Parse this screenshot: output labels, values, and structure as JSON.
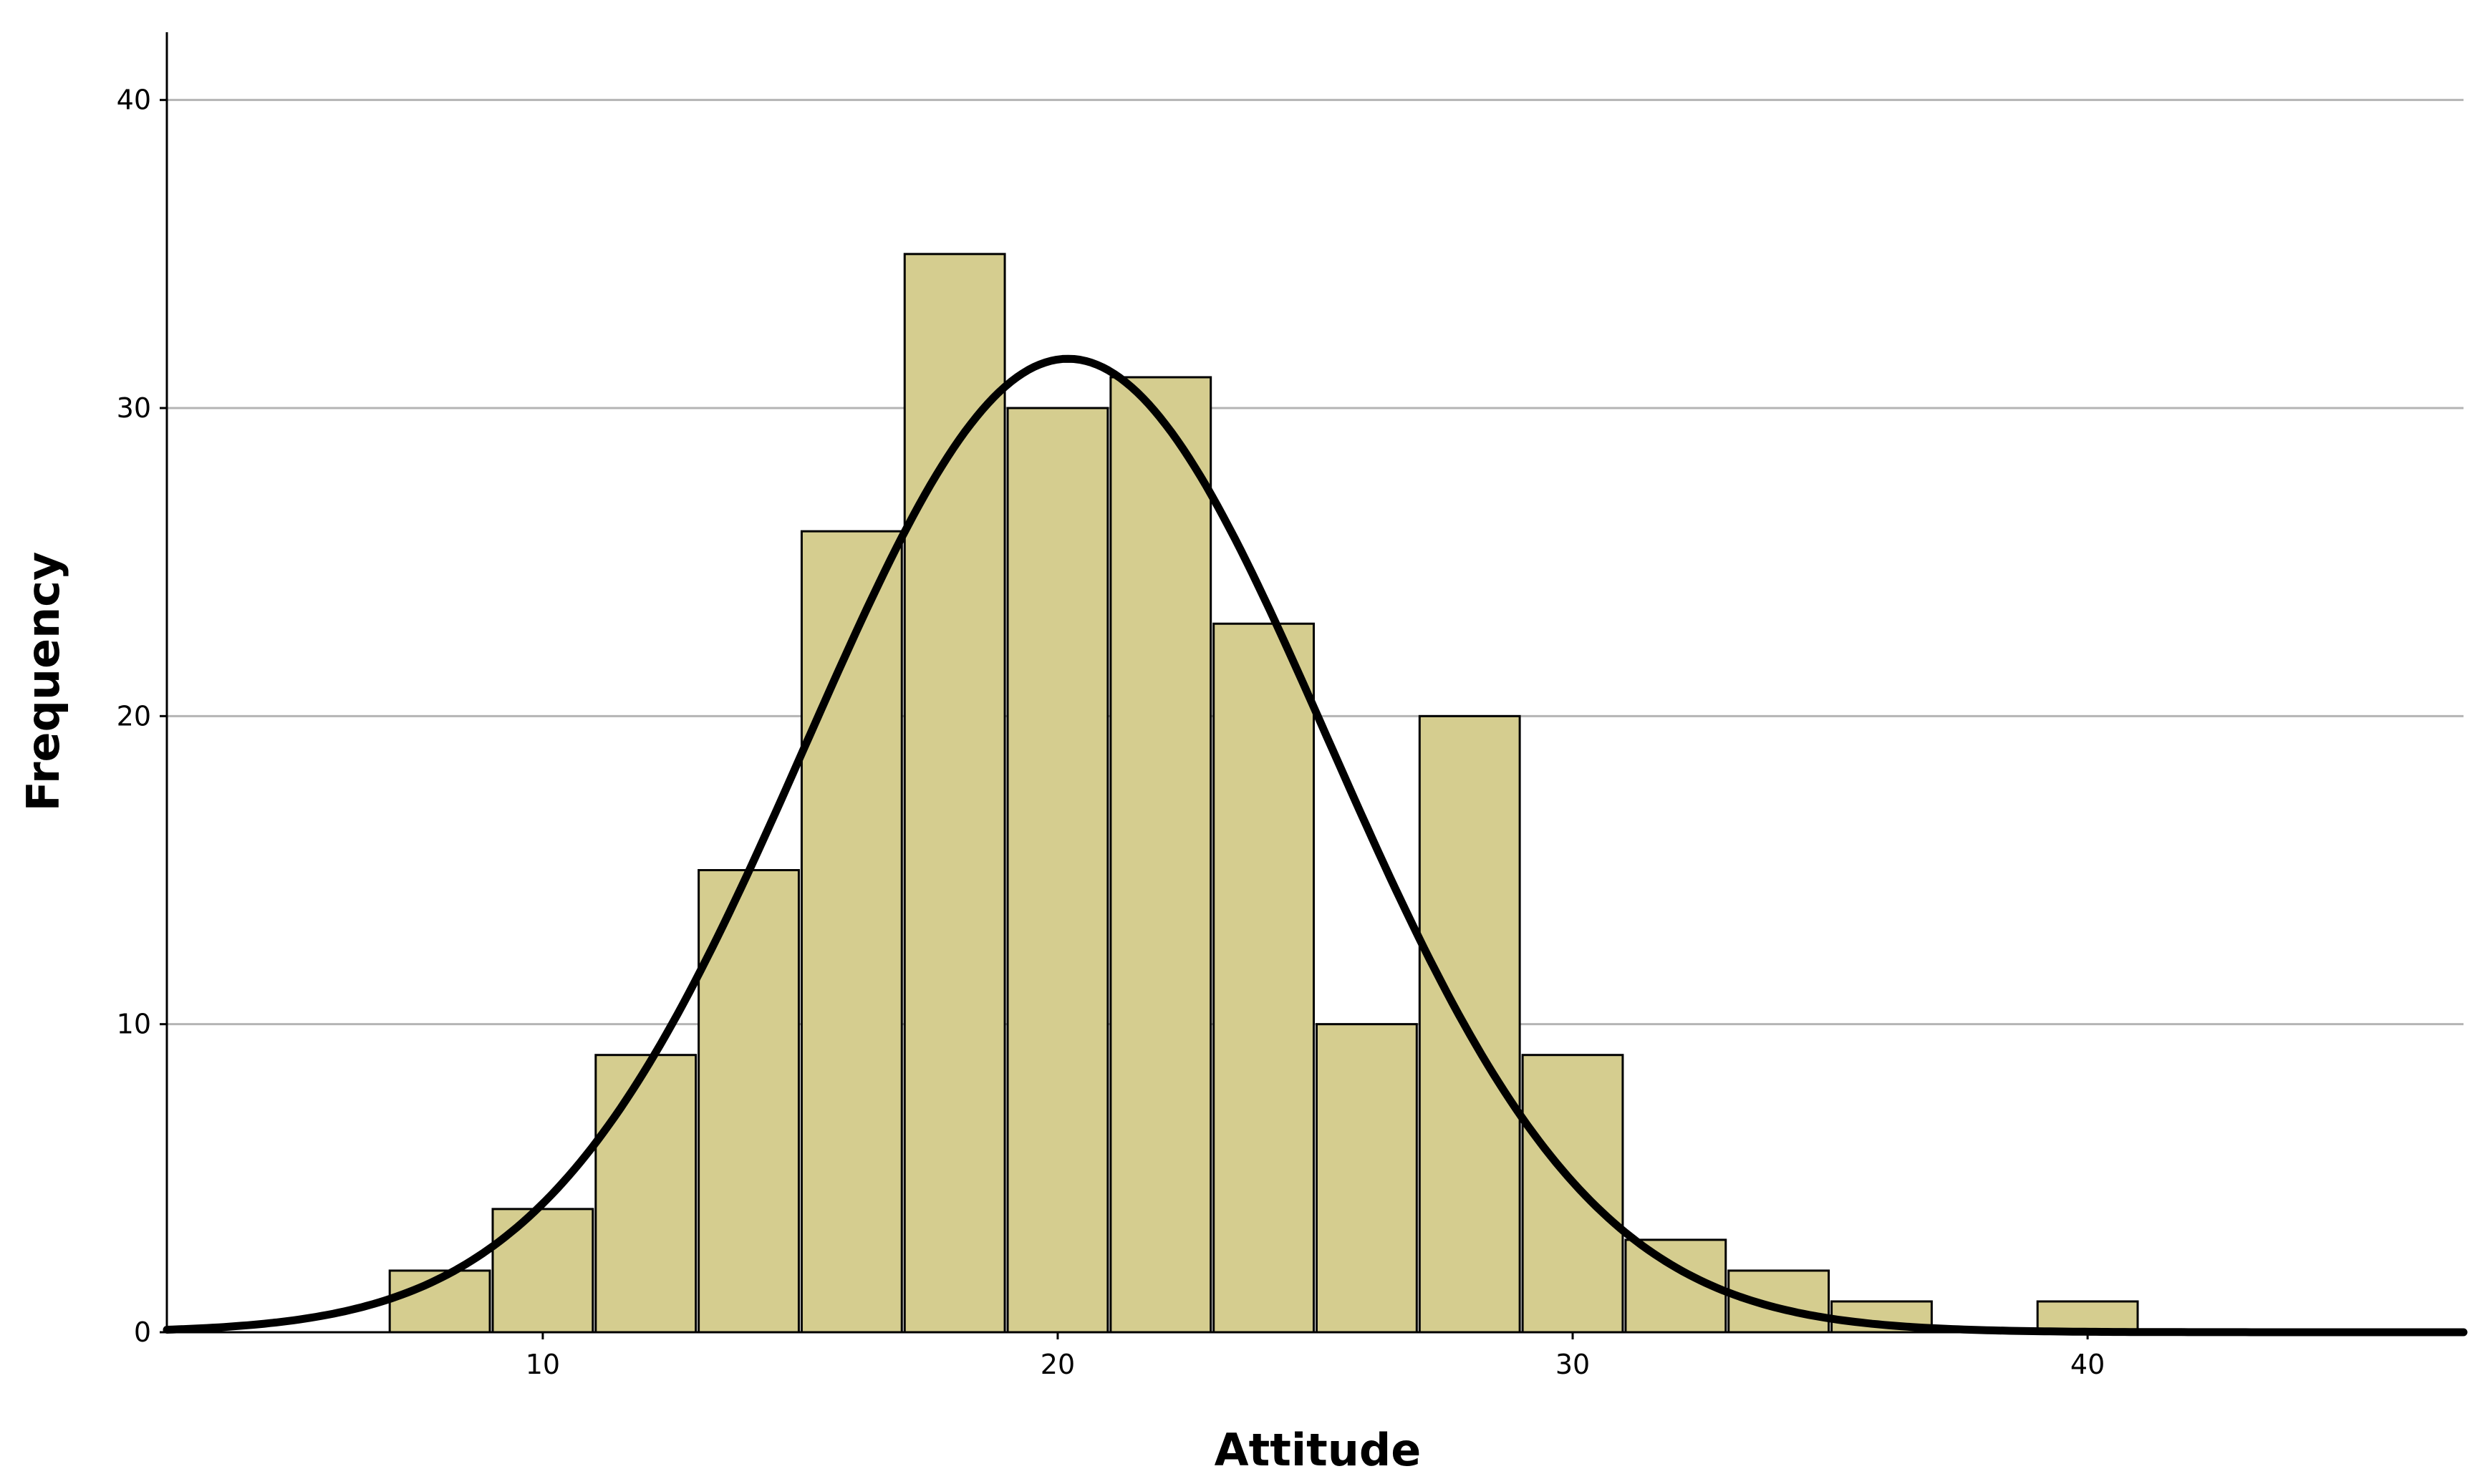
{
  "chart_data": {
    "type": "histogram",
    "xlabel": "Attitude",
    "ylabel": "Frequency",
    "xlim": [
      2.7,
      47.3
    ],
    "ylim": [
      0,
      42.2
    ],
    "xticks": [
      10,
      20,
      30,
      40
    ],
    "yticks": [
      0,
      10,
      20,
      30,
      40
    ],
    "grid": "horizontal",
    "bins": [
      {
        "start": 7,
        "end": 9,
        "count": 2
      },
      {
        "start": 9,
        "end": 11,
        "count": 4
      },
      {
        "start": 11,
        "end": 13,
        "count": 9
      },
      {
        "start": 13,
        "end": 15,
        "count": 15
      },
      {
        "start": 15,
        "end": 17,
        "count": 26
      },
      {
        "start": 17,
        "end": 19,
        "count": 35
      },
      {
        "start": 19,
        "end": 21,
        "count": 30
      },
      {
        "start": 21,
        "end": 23,
        "count": 31
      },
      {
        "start": 23,
        "end": 25,
        "count": 23
      },
      {
        "start": 25,
        "end": 27,
        "count": 10
      },
      {
        "start": 27,
        "end": 29,
        "count": 20
      },
      {
        "start": 29,
        "end": 31,
        "count": 9
      },
      {
        "start": 31,
        "end": 33,
        "count": 3
      },
      {
        "start": 33,
        "end": 35,
        "count": 2
      },
      {
        "start": 35,
        "end": 37,
        "count": 1
      },
      {
        "start": 39,
        "end": 41,
        "count": 1
      }
    ],
    "normal_curve": {
      "mean": 20.2,
      "sd": 5.07,
      "peak": 31.6
    },
    "colors": {
      "bar_fill": "#d5cd8f",
      "bar_stroke": "#000000",
      "grid": "#b4b4b4",
      "curve": "#000000"
    }
  }
}
